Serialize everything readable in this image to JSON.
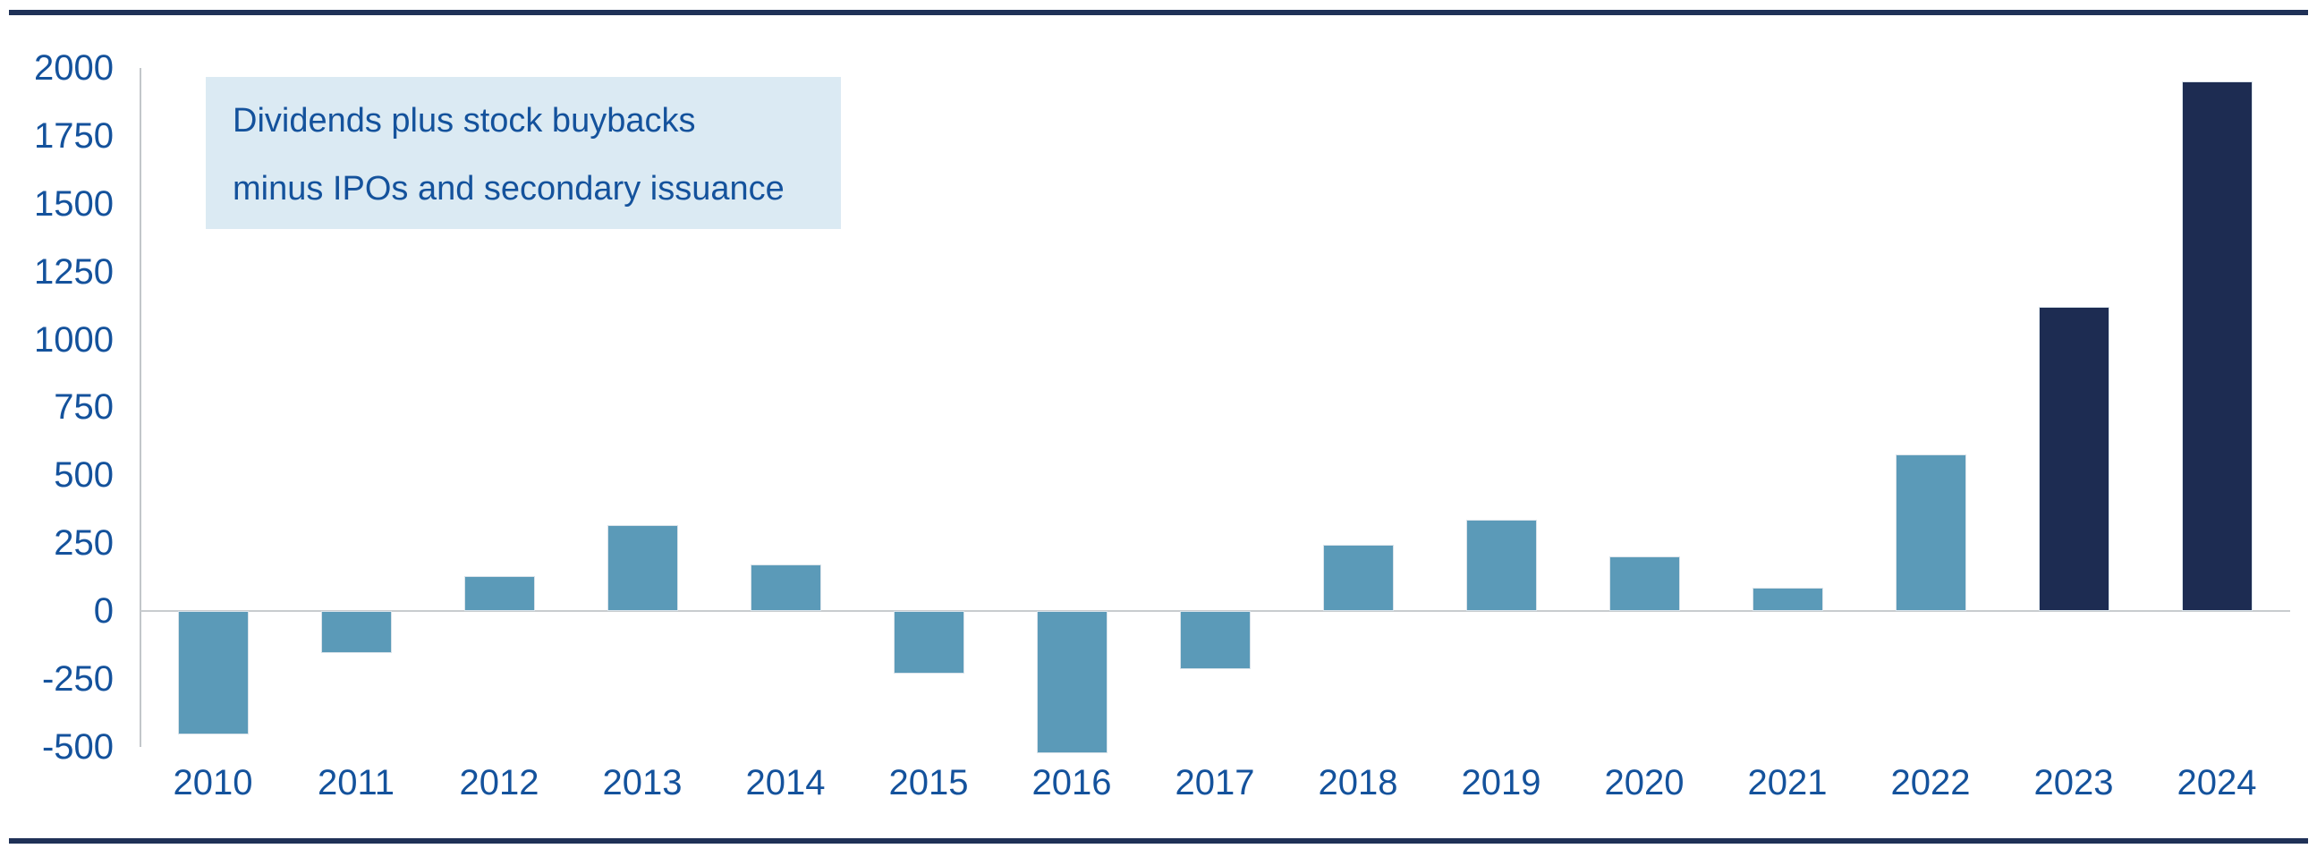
{
  "annotation": {
    "line1": "Dividends plus stock buybacks",
    "line2": "minus IPOs and secondary issuance"
  },
  "colors": {
    "bar_light": "#5b9ab8",
    "bar_dark": "#1d2c52",
    "bar_edge": "#d9e3ea",
    "annotation_bg": "#dbeaf3",
    "annotation_text": "#14529c",
    "axis_text": "#14529c",
    "axis_line": "#c2c6ca",
    "zero_line": "#c8cccf",
    "rule": "#1f3157"
  },
  "chart_data": {
    "type": "bar",
    "title": "",
    "xlabel": "",
    "ylabel": "",
    "annotation": "Dividends plus stock buybacks minus IPOs and secondary issuance",
    "categories": [
      "2010",
      "2011",
      "2012",
      "2013",
      "2014",
      "2015",
      "2016",
      "2017",
      "2018",
      "2019",
      "2020",
      "2021",
      "2022",
      "2023",
      "2024"
    ],
    "values": [
      -455,
      -155,
      130,
      315,
      170,
      -230,
      -525,
      -215,
      245,
      335,
      200,
      85,
      575,
      1120,
      1950
    ],
    "bar_styles": [
      "light",
      "light",
      "light",
      "light",
      "light",
      "light",
      "light",
      "light",
      "light",
      "light",
      "light",
      "light",
      "light",
      "dark",
      "dark"
    ],
    "y_ticks": [
      2000,
      1750,
      1500,
      1250,
      1000,
      750,
      500,
      250,
      0,
      -250,
      -500
    ],
    "ylim": [
      -560,
      2020
    ],
    "grid": false,
    "legend": false,
    "zero_baseline": true
  }
}
